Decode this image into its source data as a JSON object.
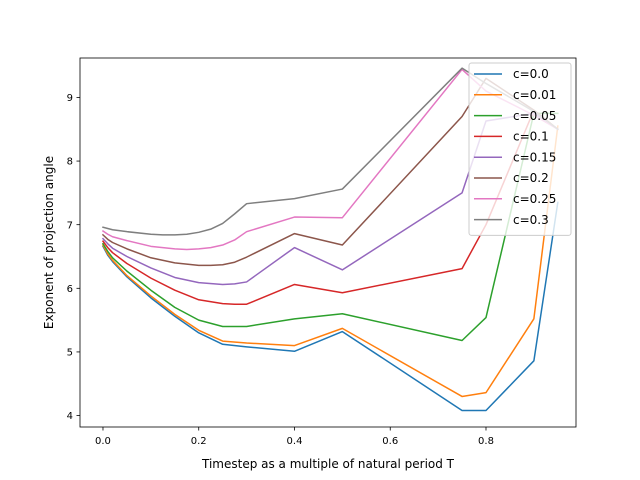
{
  "chart_data": {
    "type": "line",
    "title": "",
    "xlabel": "Timestep as a multiple of natural period T",
    "ylabel": "Exponent of projection angle",
    "xlim": [
      -0.048,
      0.988
    ],
    "ylim": [
      3.82,
      9.62
    ],
    "xticks": [
      0.0,
      0.2,
      0.4,
      0.6,
      0.8
    ],
    "xtick_labels": [
      "0.0",
      "0.2",
      "0.4",
      "0.6",
      "0.8"
    ],
    "yticks": [
      4,
      5,
      6,
      7,
      8,
      9
    ],
    "ytick_labels": [
      "4",
      "5",
      "6",
      "7",
      "8",
      "9"
    ],
    "grid": false,
    "legend_position": "top-right",
    "series": [
      {
        "name": "c=0.0",
        "color": "#1f77b4",
        "x": [
          0.0,
          0.01,
          0.02,
          0.05,
          0.1,
          0.15,
          0.2,
          0.25,
          0.3,
          0.4,
          0.5,
          0.75,
          0.8,
          0.9,
          0.95
        ],
        "y": [
          6.66,
          6.52,
          6.42,
          6.18,
          5.85,
          5.56,
          5.3,
          5.12,
          5.08,
          5.01,
          5.32,
          4.08,
          4.08,
          4.86,
          7.35
        ]
      },
      {
        "name": "c=0.01",
        "color": "#ff7f0e",
        "x": [
          0.0,
          0.01,
          0.02,
          0.05,
          0.1,
          0.15,
          0.2,
          0.25,
          0.3,
          0.4,
          0.5,
          0.75,
          0.8,
          0.9,
          0.95
        ],
        "y": [
          6.68,
          6.54,
          6.44,
          6.2,
          5.88,
          5.59,
          5.34,
          5.17,
          5.14,
          5.1,
          5.37,
          4.3,
          4.36,
          5.52,
          8.55
        ]
      },
      {
        "name": "c=0.05",
        "color": "#2ca02c",
        "x": [
          0.0,
          0.01,
          0.02,
          0.05,
          0.1,
          0.15,
          0.2,
          0.25,
          0.3,
          0.4,
          0.5,
          0.75,
          0.8,
          0.9,
          0.95
        ],
        "y": [
          6.7,
          6.58,
          6.48,
          6.27,
          5.97,
          5.7,
          5.5,
          5.4,
          5.4,
          5.52,
          5.6,
          5.18,
          5.54,
          8.75,
          8.75
        ]
      },
      {
        "name": "c=0.1",
        "color": "#d62728",
        "x": [
          0.0,
          0.01,
          0.02,
          0.05,
          0.1,
          0.15,
          0.2,
          0.25,
          0.275,
          0.3,
          0.4,
          0.5,
          0.75,
          0.8,
          0.9,
          0.95
        ],
        "y": [
          6.74,
          6.64,
          6.56,
          6.39,
          6.16,
          5.97,
          5.82,
          5.76,
          5.75,
          5.75,
          6.06,
          5.93,
          6.31,
          7.0,
          8.8,
          8.5
        ]
      },
      {
        "name": "c=0.15",
        "color": "#9467bd",
        "x": [
          0.0,
          0.01,
          0.02,
          0.05,
          0.1,
          0.15,
          0.2,
          0.25,
          0.275,
          0.3,
          0.4,
          0.5,
          0.75,
          0.8,
          0.9,
          0.95
        ],
        "y": [
          6.78,
          6.7,
          6.63,
          6.5,
          6.32,
          6.17,
          6.09,
          6.06,
          6.07,
          6.1,
          6.64,
          6.29,
          7.5,
          8.63,
          8.75,
          8.5
        ]
      },
      {
        "name": "c=0.2",
        "color": "#8c564b",
        "x": [
          0.0,
          0.01,
          0.02,
          0.05,
          0.1,
          0.15,
          0.2,
          0.225,
          0.25,
          0.275,
          0.3,
          0.4,
          0.5,
          0.75,
          0.8,
          0.9,
          0.95
        ],
        "y": [
          6.84,
          6.77,
          6.72,
          6.62,
          6.48,
          6.4,
          6.36,
          6.36,
          6.37,
          6.41,
          6.49,
          6.86,
          6.68,
          8.7,
          9.3,
          8.8,
          8.5
        ]
      },
      {
        "name": "c=0.25",
        "color": "#e377c2",
        "x": [
          0.0,
          0.01,
          0.02,
          0.05,
          0.1,
          0.15,
          0.175,
          0.2,
          0.225,
          0.25,
          0.275,
          0.3,
          0.4,
          0.5,
          0.75,
          0.8,
          0.9,
          0.95
        ],
        "y": [
          6.9,
          6.85,
          6.81,
          6.75,
          6.66,
          6.62,
          6.61,
          6.62,
          6.64,
          6.68,
          6.76,
          6.89,
          7.12,
          7.11,
          9.44,
          9.1,
          8.72,
          8.5
        ]
      },
      {
        "name": "c=0.3",
        "color": "#7f7f7f",
        "x": [
          0.0,
          0.01,
          0.02,
          0.05,
          0.1,
          0.125,
          0.15,
          0.175,
          0.2,
          0.225,
          0.25,
          0.275,
          0.3,
          0.4,
          0.5,
          0.75,
          0.8,
          0.9,
          0.95
        ],
        "y": [
          6.96,
          6.94,
          6.92,
          6.89,
          6.85,
          6.84,
          6.84,
          6.85,
          6.88,
          6.93,
          7.02,
          7.17,
          7.33,
          7.41,
          7.56,
          9.46,
          9.22,
          8.78,
          8.5
        ]
      }
    ]
  }
}
